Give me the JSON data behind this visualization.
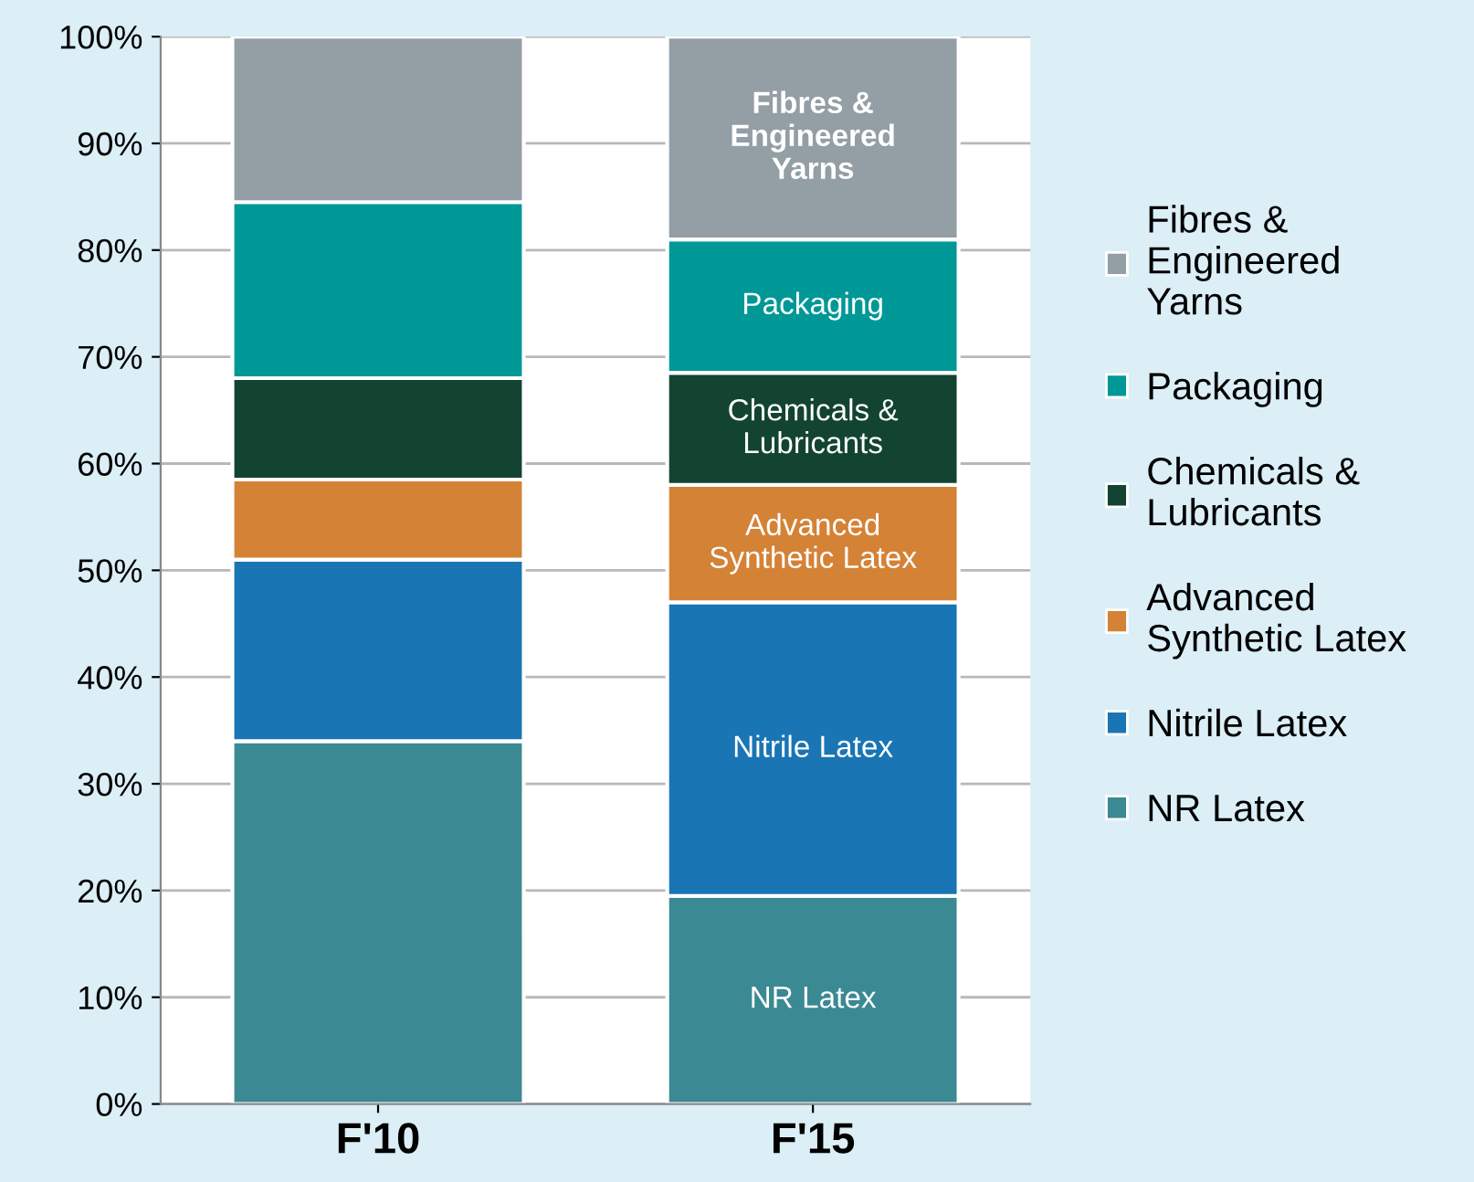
{
  "chart_data": {
    "type": "bar",
    "stacked": true,
    "categories": [
      "F'10",
      "F'15"
    ],
    "series": [
      {
        "name": "NR Latex",
        "color": "#3b8993",
        "values": [
          34,
          19.5
        ]
      },
      {
        "name": "Nitrile Latex",
        "color": "#1a75b4",
        "values": [
          17,
          27.5
        ]
      },
      {
        "name": "Advanced\nSynthetic Latex",
        "color": "#d48236",
        "values": [
          7.5,
          11
        ]
      },
      {
        "name": "Chemicals &\nLubricants",
        "color": "#134431",
        "values": [
          9.5,
          10.5
        ]
      },
      {
        "name": "Packaging",
        "color": "#009896",
        "values": [
          16.5,
          12.5
        ]
      },
      {
        "name": "Fibres &\nEngineered\nYarns",
        "color": "#939ea5",
        "values": [
          15.5,
          19
        ]
      }
    ],
    "ylim": [
      0,
      100
    ],
    "yticks": [
      {
        "value": 0,
        "label": "0%"
      },
      {
        "value": 10,
        "label": "10%"
      },
      {
        "value": 20,
        "label": "20%"
      },
      {
        "value": 30,
        "label": "30%"
      },
      {
        "value": 40,
        "label": "40%"
      },
      {
        "value": 50,
        "label": "50%"
      },
      {
        "value": 60,
        "label": "60%"
      },
      {
        "value": 70,
        "label": "70%"
      },
      {
        "value": 80,
        "label": "80%"
      },
      {
        "value": 90,
        "label": "90%"
      },
      {
        "value": 100,
        "label": "100%"
      }
    ],
    "grid": "y",
    "legend": "right",
    "annotations": [
      "NR Latex",
      "Nitrile Latex",
      "Advanced\nSynthetic Latex",
      "Chemicals &\nLubricants",
      "Packaging",
      "Fibres &\nEngineered\nYarns"
    ]
  }
}
